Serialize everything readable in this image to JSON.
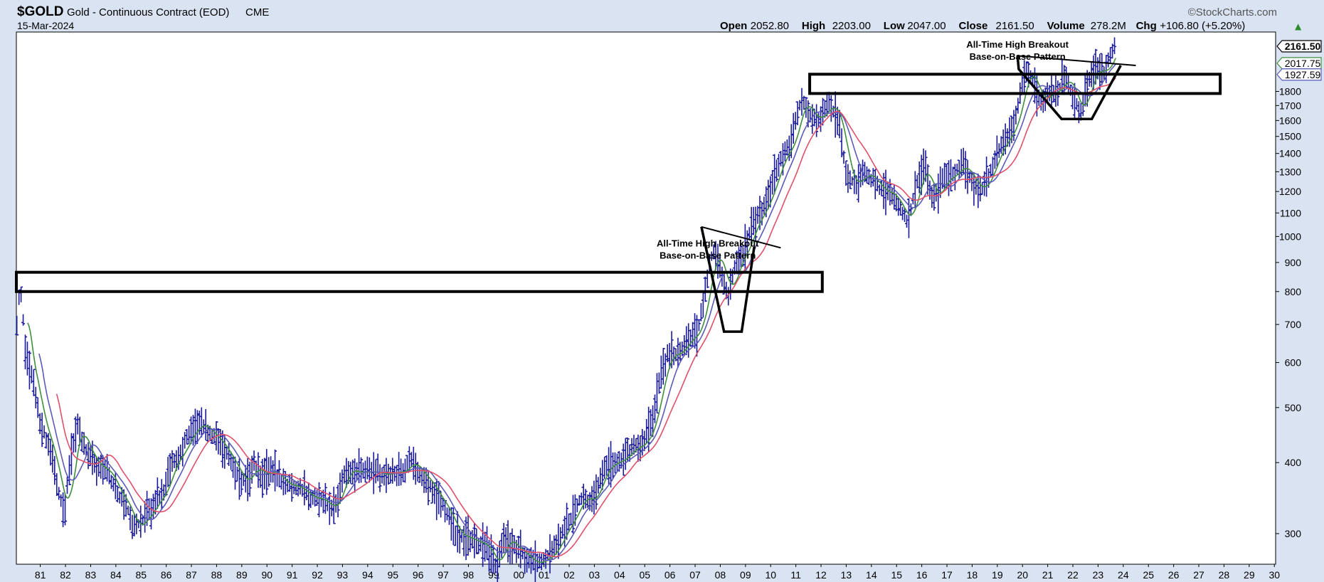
{
  "header": {
    "symbol": "$GOLD",
    "description": "Gold - Continuous Contract (EOD)",
    "exchange": "CME",
    "date": "15-Mar-2024",
    "brand": "©StockCharts.com",
    "quote": [
      {
        "label": "Open",
        "value": "2052.80"
      },
      {
        "label": "High",
        "value": "2203.00"
      },
      {
        "label": "Low",
        "value": "2047.00"
      },
      {
        "label": "Close",
        "value": "2161.50"
      },
      {
        "label": "Volume",
        "value": "278.2M"
      },
      {
        "label": "Chg",
        "value": "+106.80 (+5.20%)"
      }
    ],
    "up_arrow": "▲"
  },
  "colors": {
    "frame_bg": "#d9e3f2",
    "price_bars": "#1a1a9c",
    "ma_short": "#3f8f3f",
    "ma_mid": "#5b5bb8",
    "ma_long": "#e0506a",
    "annotation": "#000000"
  },
  "chart_data": {
    "type": "ohlc",
    "scale": "log",
    "x_tick_labels": [
      "81",
      "82",
      "83",
      "84",
      "85",
      "86",
      "87",
      "88",
      "89",
      "90",
      "91",
      "92",
      "93",
      "94",
      "95",
      "96",
      "97",
      "98",
      "99",
      "00",
      "01",
      "02",
      "03",
      "04",
      "05",
      "06",
      "07",
      "08",
      "09",
      "10",
      "11",
      "12",
      "13",
      "14",
      "15",
      "16",
      "17",
      "18",
      "19",
      "20",
      "21",
      "22",
      "23",
      "24",
      "25",
      "26",
      "27",
      "28",
      "29",
      "30"
    ],
    "y_tick_labels": [
      300,
      400,
      500,
      600,
      700,
      800,
      900,
      1000,
      1100,
      1200,
      1300,
      1400,
      1500,
      1600,
      1700,
      1800
    ],
    "xlim": [
      1980.55,
      2030.55
    ],
    "ylim": [
      265,
      2290
    ],
    "last_value_tags": [
      {
        "value": "2161.50",
        "color": "#000000",
        "bold": true
      },
      {
        "value": "2017.75",
        "color": "#3f8f3f"
      },
      {
        "value": "1927.59",
        "color": "#5b5bb8"
      }
    ],
    "price_anchors": [
      [
        1980.55,
        680
      ],
      [
        1980.7,
        830
      ],
      [
        1980.9,
        640
      ],
      [
        1981.2,
        560
      ],
      [
        1981.5,
        470
      ],
      [
        1981.9,
        420
      ],
      [
        1982.2,
        360
      ],
      [
        1982.45,
        320
      ],
      [
        1982.7,
        410
      ],
      [
        1983.0,
        470
      ],
      [
        1983.2,
        430
      ],
      [
        1983.5,
        410
      ],
      [
        1983.8,
        390
      ],
      [
        1984.1,
        390
      ],
      [
        1984.4,
        365
      ],
      [
        1984.7,
        345
      ],
      [
        1985.0,
        330
      ],
      [
        1985.2,
        305
      ],
      [
        1985.5,
        315
      ],
      [
        1985.8,
        325
      ],
      [
        1986.1,
        345
      ],
      [
        1986.4,
        355
      ],
      [
        1986.7,
        400
      ],
      [
        1987.0,
        410
      ],
      [
        1987.3,
        440
      ],
      [
        1987.6,
        460
      ],
      [
        1987.9,
        470
      ],
      [
        1988.2,
        450
      ],
      [
        1988.5,
        440
      ],
      [
        1988.8,
        420
      ],
      [
        1989.1,
        400
      ],
      [
        1989.4,
        375
      ],
      [
        1989.7,
        370
      ],
      [
        1990.0,
        400
      ],
      [
        1990.3,
        375
      ],
      [
        1990.6,
        390
      ],
      [
        1990.9,
        380
      ],
      [
        1991.2,
        365
      ],
      [
        1991.5,
        365
      ],
      [
        1991.8,
        360
      ],
      [
        1992.1,
        350
      ],
      [
        1992.4,
        345
      ],
      [
        1992.7,
        345
      ],
      [
        1993.0,
        330
      ],
      [
        1993.3,
        345
      ],
      [
        1993.6,
        390
      ],
      [
        1993.9,
        385
      ],
      [
        1994.2,
        385
      ],
      [
        1994.5,
        385
      ],
      [
        1994.8,
        385
      ],
      [
        1995.1,
        380
      ],
      [
        1995.5,
        385
      ],
      [
        1995.9,
        385
      ],
      [
        1996.2,
        405
      ],
      [
        1996.5,
        385
      ],
      [
        1996.9,
        370
      ],
      [
        1997.2,
        350
      ],
      [
        1997.6,
        330
      ],
      [
        1998.0,
        300
      ],
      [
        1998.4,
        295
      ],
      [
        1998.8,
        290
      ],
      [
        1999.2,
        285
      ],
      [
        1999.6,
        260
      ],
      [
        1999.9,
        295
      ],
      [
        2000.3,
        285
      ],
      [
        2000.7,
        275
      ],
      [
        2001.1,
        265
      ],
      [
        2001.5,
        270
      ],
      [
        2001.9,
        280
      ],
      [
        2002.2,
        300
      ],
      [
        2002.6,
        320
      ],
      [
        2003.0,
        350
      ],
      [
        2003.4,
        340
      ],
      [
        2003.8,
        385
      ],
      [
        2004.2,
        400
      ],
      [
        2004.6,
        405
      ],
      [
        2005.0,
        425
      ],
      [
        2005.4,
        430
      ],
      [
        2005.8,
        470
      ],
      [
        2006.1,
        560
      ],
      [
        2006.4,
        620
      ],
      [
        2006.8,
        620
      ],
      [
        2007.2,
        660
      ],
      [
        2007.6,
        680
      ],
      [
        2007.9,
        800
      ],
      [
        2008.2,
        950
      ],
      [
        2008.5,
        880
      ],
      [
        2008.8,
        780
      ],
      [
        2009.1,
        900
      ],
      [
        2009.4,
        930
      ],
      [
        2009.8,
        1050
      ],
      [
        2010.2,
        1120
      ],
      [
        2010.6,
        1250
      ],
      [
        2010.9,
        1380
      ],
      [
        2011.3,
        1450
      ],
      [
        2011.7,
        1750
      ],
      [
        2012.0,
        1650
      ],
      [
        2012.4,
        1600
      ],
      [
        2012.8,
        1720
      ],
      [
        2013.2,
        1600
      ],
      [
        2013.5,
        1280
      ],
      [
        2013.9,
        1230
      ],
      [
        2014.2,
        1300
      ],
      [
        2014.6,
        1250
      ],
      [
        2014.9,
        1200
      ],
      [
        2015.3,
        1190
      ],
      [
        2015.7,
        1100
      ],
      [
        2015.95,
        1060
      ],
      [
        2016.3,
        1250
      ],
      [
        2016.6,
        1330
      ],
      [
        2016.95,
        1150
      ],
      [
        2017.3,
        1250
      ],
      [
        2017.7,
        1280
      ],
      [
        2018.1,
        1340
      ],
      [
        2018.5,
        1250
      ],
      [
        2018.8,
        1200
      ],
      [
        2019.2,
        1290
      ],
      [
        2019.5,
        1420
      ],
      [
        2019.9,
        1500
      ],
      [
        2020.2,
        1600
      ],
      [
        2020.6,
        1970
      ],
      [
        2020.9,
        1880
      ],
      [
        2021.2,
        1720
      ],
      [
        2021.6,
        1800
      ],
      [
        2021.9,
        1800
      ],
      [
        2022.2,
        1930
      ],
      [
        2022.5,
        1760
      ],
      [
        2022.8,
        1640
      ],
      [
        2023.1,
        1870
      ],
      [
        2023.4,
        1990
      ],
      [
        2023.7,
        1920
      ],
      [
        2023.95,
        2060
      ],
      [
        2024.2,
        2161.5
      ]
    ],
    "moving_averages": [
      {
        "key": "ma_short",
        "lag": 0.45
      },
      {
        "key": "ma_mid",
        "lag": 0.9
      },
      {
        "key": "ma_long",
        "lag": 1.6
      }
    ],
    "annotations": [
      {
        "kind": "text",
        "lines": [
          "All-Time High Breakout",
          "Base-on-Base Pattern"
        ],
        "x": 2008.0,
        "y": 960
      },
      {
        "kind": "text",
        "lines": [
          "All-Time High Breakout",
          "Base-on-Base Pattern"
        ],
        "x": 2020.3,
        "y": 2150
      },
      {
        "kind": "rect",
        "x1": 1980.55,
        "x2": 2012.55,
        "y1": 800,
        "y2": 865
      },
      {
        "kind": "rect",
        "x1": 2012.05,
        "x2": 2028.35,
        "y1": 1785,
        "y2": 1930
      },
      {
        "kind": "polyline",
        "points": [
          [
            2007.75,
            1040
          ],
          [
            2008.65,
            680
          ],
          [
            2009.35,
            680
          ],
          [
            2009.85,
            960
          ]
        ]
      },
      {
        "kind": "polyline",
        "points": [
          [
            2007.75,
            1040
          ],
          [
            2010.9,
            955
          ]
        ]
      },
      {
        "kind": "polyline",
        "points": [
          [
            2020.3,
            2080
          ],
          [
            2020.35,
            1970
          ],
          [
            2022.05,
            1610
          ],
          [
            2023.25,
            1610
          ],
          [
            2024.4,
            2000
          ]
        ]
      },
      {
        "kind": "polyline",
        "points": [
          [
            2020.3,
            2080
          ],
          [
            2025.0,
            2000
          ]
        ]
      }
    ]
  }
}
